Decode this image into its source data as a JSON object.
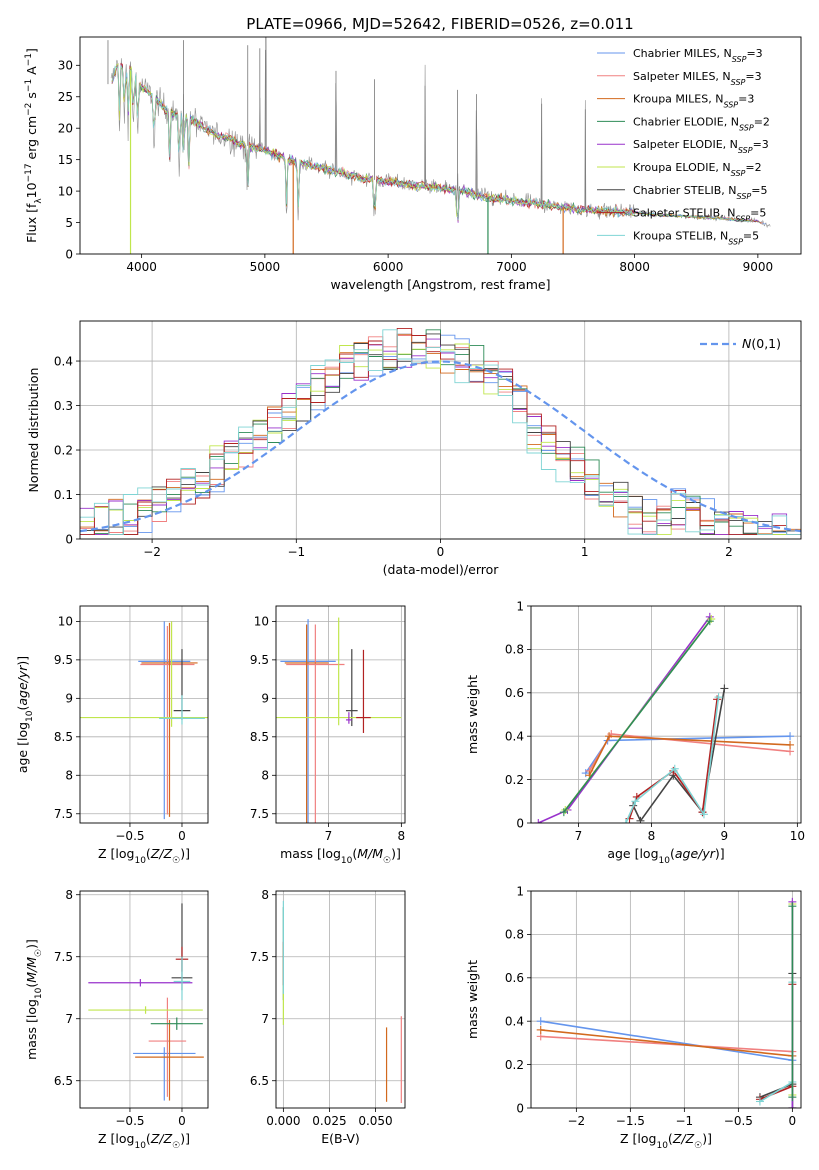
{
  "figure": {
    "title": "PLATE=0966, MJD=52642, FIBERID=0526, z=0.011"
  },
  "colors": [
    "#6495ED",
    "#F08080",
    "#D2691E",
    "#2E8B57",
    "#9932CC",
    "#C0E64D",
    "#444444",
    "#B22222",
    "#7FD4D4"
  ],
  "chart_data": [
    {
      "id": "spectrum",
      "type": "line",
      "xlabel": "wavelength [Angstrom, rest frame]",
      "ylabel": "Flux [f_λ 10^-17 erg cm^-2 s^-1 A^-1]",
      "xlim": [
        3500,
        9350
      ],
      "ylim": [
        0,
        34.5
      ],
      "xticks": [
        4000,
        5000,
        6000,
        7000,
        8000,
        9000
      ],
      "yticks": [
        0,
        5,
        10,
        15,
        20,
        25,
        30
      ],
      "grid": false,
      "legend_position": "top-right",
      "continuum": {
        "x": [
          3750,
          3800,
          3900,
          4000,
          4100,
          4200,
          4300,
          4400,
          4500,
          4600,
          4700,
          4800,
          4900,
          5000,
          5200,
          5400,
          5600,
          5800,
          6000,
          6200,
          6400,
          6600,
          6800,
          7000,
          7200,
          7400,
          7600,
          7800,
          8000,
          8200,
          8400,
          8600,
          8800,
          9000,
          9100
        ],
        "y": [
          27,
          30,
          29.5,
          26.5,
          25,
          23,
          22,
          21.5,
          20,
          19,
          18.5,
          17.5,
          17,
          16.5,
          15,
          14,
          13,
          12,
          11.5,
          11,
          10.5,
          10,
          9,
          8.5,
          8,
          7.5,
          7,
          6.8,
          6.6,
          6.2,
          6,
          5.8,
          5.5,
          5.2,
          4.5
        ]
      },
      "absorption_lines": [
        3820,
        3860,
        3890,
        3933,
        3968,
        4101,
        4227,
        4304,
        4340,
        4383,
        4861,
        5175,
        5270,
        5890,
        6563
      ],
      "emission_lines": [
        3727,
        4340,
        4861,
        4959,
        5007,
        5577,
        5890,
        6300,
        6563,
        6717,
        7246,
        7600
      ],
      "drop_lines": [
        3910,
        5230,
        6810,
        7420
      ],
      "series": [
        {
          "name": "Chabrier MILES, N_SSP=3",
          "prefix": "Chabrier MILES, N",
          "sub": "SSP",
          "suffix": "=3"
        },
        {
          "name": "Salpeter MILES, N_SSP=3",
          "prefix": "Salpeter MILES, N",
          "sub": "SSP",
          "suffix": "=3"
        },
        {
          "name": "Kroupa MILES, N_SSP=3",
          "prefix": "Kroupa MILES, N",
          "sub": "SSP",
          "suffix": "=3"
        },
        {
          "name": "Chabrier ELODIE, N_SSP=2",
          "prefix": "Chabrier ELODIE, N",
          "sub": "SSP",
          "suffix": "=2"
        },
        {
          "name": "Salpeter ELODIE, N_SSP=3",
          "prefix": "Salpeter ELODIE, N",
          "sub": "SSP",
          "suffix": "=3"
        },
        {
          "name": "Kroupa ELODIE, N_SSP=2",
          "prefix": "Kroupa ELODIE, N",
          "sub": "SSP",
          "suffix": "=2"
        },
        {
          "name": "Chabrier STELIB, N_SSP=5",
          "prefix": "Chabrier STELIB, N",
          "sub": "SSP",
          "suffix": "=5"
        },
        {
          "name": "Salpeter STELIB, N_SSP=5",
          "prefix": "Salpeter STELIB, N",
          "sub": "SSP",
          "suffix": "=5"
        },
        {
          "name": "Kroupa STELIB, N_SSP=5",
          "prefix": "Kroupa STELIB, N",
          "sub": "SSP",
          "suffix": "=5"
        }
      ]
    },
    {
      "id": "residuals",
      "type": "line",
      "xlabel": "(data-model)/error",
      "ylabel": "Normed distribution",
      "xlim": [
        -2.5,
        2.5
      ],
      "ylim": [
        0,
        0.49
      ],
      "xticks": [
        -2,
        -1,
        0,
        1,
        2
      ],
      "yticks": [
        0.0,
        0.1,
        0.2,
        0.3,
        0.4
      ],
      "grid": true,
      "legend_position": "top-right",
      "legend": "N(0,1)",
      "bin_width": 0.1,
      "gaussian": {
        "mean": 0,
        "sigma": 1
      }
    },
    {
      "id": "age-vs-Z",
      "type": "scatter",
      "xlabel": "Z [log10(Z/Z☉)]",
      "ylabel": "age  [log10(age/yr)]",
      "xlim": [
        -0.98,
        0.25
      ],
      "ylim": [
        7.38,
        10.2
      ],
      "xticks": [
        -0.5,
        0.0
      ],
      "yticks": [
        7.5,
        8.0,
        8.5,
        9.0,
        9.5,
        10.0
      ],
      "grid": true,
      "crosses": [
        {
          "series": 0,
          "x": -0.17,
          "y": 9.48,
          "xerr": 0.25,
          "yerr": [
            2.05,
            0.52
          ]
        },
        {
          "series": 1,
          "x": -0.14,
          "y": 9.44,
          "xerr": 0.26,
          "yerr": [
            1.95,
            0.5
          ]
        },
        {
          "series": 2,
          "x": -0.12,
          "y": 9.46,
          "xerr": 0.27,
          "yerr": [
            2.0,
            0.52
          ]
        },
        {
          "series": 6,
          "x": 0.0,
          "y": 8.84,
          "xerr": 0.08,
          "yerr": [
            0.12,
            0.8
          ]
        },
        {
          "series": 5,
          "x": -0.1,
          "y": 8.75,
          "xerr": 0.88,
          "yerr": [
            0.12,
            1.25
          ]
        },
        {
          "series": 8,
          "x": 0.0,
          "y": 8.74,
          "xerr": 0.22,
          "yerr": [
            0.08,
            0.3
          ]
        }
      ]
    },
    {
      "id": "age-vs-mass",
      "type": "scatter",
      "xlabel": "mass [log10(M/M☉)]",
      "ylabel": "",
      "xlim": [
        6.28,
        8.05
      ],
      "ylim": [
        7.38,
        10.2
      ],
      "xticks": [
        7,
        8
      ],
      "yticks": [
        7.5,
        8.0,
        8.5,
        9.0,
        9.5,
        10.0
      ],
      "grid": true,
      "crosses": [
        {
          "series": 0,
          "x": 6.72,
          "y": 9.48,
          "xerr": 0.38,
          "yerr": [
            2.2,
            0.55
          ]
        },
        {
          "series": 1,
          "x": 6.82,
          "y": 9.44,
          "xerr": 0.4,
          "yerr": [
            2.1,
            0.52
          ]
        },
        {
          "series": 2,
          "x": 6.7,
          "y": 9.46,
          "xerr": 0.3,
          "yerr": [
            2.2,
            0.5
          ]
        },
        {
          "series": 6,
          "x": 7.32,
          "y": 8.84,
          "xerr": 0.08,
          "yerr": [
            0.2,
            0.8
          ]
        },
        {
          "series": 5,
          "x": 7.14,
          "y": 8.75,
          "xerr": 0.86,
          "yerr": [
            0.1,
            1.3
          ]
        },
        {
          "series": 7,
          "x": 7.48,
          "y": 8.75,
          "xerr": 0.1,
          "yerr": [
            0.2,
            0.88
          ]
        },
        {
          "series": 4,
          "x": 7.28,
          "y": 8.72,
          "xerr": 0.04,
          "yerr": [
            0.05,
            0.1
          ]
        }
      ]
    },
    {
      "id": "mass-weight-vs-age",
      "type": "line",
      "xlabel": "age  [log10(age/yr)]",
      "ylabel": "mass weight",
      "xlim": [
        6.35,
        10.05
      ],
      "ylim": [
        0,
        1.0
      ],
      "xticks": [
        7,
        8,
        9,
        10
      ],
      "yticks": [
        0.0,
        0.2,
        0.4,
        0.6,
        0.8,
        1.0
      ],
      "grid": true,
      "series_points": [
        {
          "series": 0,
          "x": [
            7.1,
            7.4,
            9.9
          ],
          "y": [
            0.23,
            0.38,
            0.4
          ]
        },
        {
          "series": 1,
          "x": [
            7.15,
            7.45,
            9.9
          ],
          "y": [
            0.24,
            0.41,
            0.33
          ]
        },
        {
          "series": 2,
          "x": [
            7.15,
            7.42,
            9.9
          ],
          "y": [
            0.22,
            0.4,
            0.36
          ]
        },
        {
          "series": 4,
          "x": [
            6.45,
            6.85,
            8.8
          ],
          "y": [
            0.0,
            0.06,
            0.95
          ]
        },
        {
          "series": 5,
          "x": [
            6.82,
            8.82
          ],
          "y": [
            0.06,
            0.94
          ]
        },
        {
          "series": 3,
          "x": [
            6.8,
            8.8
          ],
          "y": [
            0.05,
            0.93
          ]
        },
        {
          "series": 6,
          "x": [
            7.75,
            7.85,
            8.3,
            8.7,
            9.0
          ],
          "y": [
            0.08,
            0.01,
            0.22,
            0.05,
            0.62
          ]
        },
        {
          "series": 7,
          "x": [
            7.7,
            7.8,
            8.3,
            8.7,
            8.9
          ],
          "y": [
            0.02,
            0.12,
            0.24,
            0.05,
            0.57
          ]
        },
        {
          "series": 8,
          "x": [
            7.65,
            7.78,
            8.32,
            8.72,
            8.92
          ],
          "y": [
            0.0,
            0.1,
            0.25,
            0.04,
            0.58
          ]
        }
      ]
    },
    {
      "id": "mass-vs-Z",
      "type": "scatter",
      "xlabel": "Z [log10(Z/Z☉)]",
      "ylabel": "mass [log10(M/M☉)]",
      "xlim": [
        -0.98,
        0.25
      ],
      "ylim": [
        6.28,
        8.03
      ],
      "xticks": [
        -0.5,
        0.0
      ],
      "yticks": [
        6.5,
        7.0,
        7.5,
        8.0
      ],
      "grid": true,
      "crosses": [
        {
          "series": 0,
          "x": -0.17,
          "y": 6.72,
          "xerr": 0.3,
          "yerr": [
            0.38,
            0.05
          ]
        },
        {
          "series": 1,
          "x": -0.14,
          "y": 6.82,
          "xerr": 0.18,
          "yerr": [
            0.45,
            0.35
          ]
        },
        {
          "series": 2,
          "x": -0.12,
          "y": 6.69,
          "xerr": 0.33,
          "yerr": [
            0.35,
            0.3
          ]
        },
        {
          "series": 3,
          "x": -0.05,
          "y": 6.96,
          "xerr": 0.25,
          "yerr": [
            0.05,
            0.05
          ]
        },
        {
          "series": 4,
          "x": -0.4,
          "y": 7.29,
          "xerr": 0.5,
          "yerr": [
            0.03,
            0.03
          ]
        },
        {
          "series": 5,
          "x": -0.35,
          "y": 7.07,
          "xerr": 0.55,
          "yerr": [
            0.03,
            0.03
          ]
        },
        {
          "series": 6,
          "x": 0.0,
          "y": 7.33,
          "xerr": 0.1,
          "yerr": [
            0.1,
            0.6
          ]
        },
        {
          "series": 7,
          "x": 0.0,
          "y": 7.48,
          "xerr": 0.06,
          "yerr": [
            0.1,
            0.1
          ]
        },
        {
          "series": 8,
          "x": 0.0,
          "y": 7.3,
          "xerr": 0.08,
          "yerr": [
            0.15,
            0.2
          ]
        }
      ]
    },
    {
      "id": "mass-vs-EBV",
      "type": "scatter",
      "xlabel": "E(B-V)",
      "ylabel": "",
      "xlim": [
        -0.004,
        0.066
      ],
      "ylim": [
        6.28,
        8.03
      ],
      "xticks": [
        0.0,
        0.025,
        0.05
      ],
      "tick_labels": [
        "0.000",
        "0.025",
        "0.050"
      ],
      "yticks": [
        6.5,
        7.0,
        7.5,
        8.0
      ],
      "grid": true,
      "crosses": [
        {
          "series": 1,
          "x": 0.064,
          "y": 6.72,
          "xerr": 0.0,
          "yerr": [
            0.4,
            0.3
          ]
        },
        {
          "series": 2,
          "x": 0.056,
          "y": 6.63,
          "xerr": 0.0,
          "yerr": [
            0.3,
            0.3
          ]
        },
        {
          "series": 3,
          "x": 0.0,
          "y": 7.45,
          "xerr": 0.0,
          "yerr": [
            0.3,
            0.45
          ]
        },
        {
          "series": 5,
          "x": 0.0,
          "y": 7.2,
          "xerr": 0.0,
          "yerr": [
            0.25,
            0.4
          ]
        },
        {
          "series": 7,
          "x": 0.0,
          "y": 7.52,
          "xerr": 0.0,
          "yerr": [
            0.25,
            0.1
          ]
        },
        {
          "series": 8,
          "x": 0.0,
          "y": 7.5,
          "xerr": 0.0,
          "yerr": [
            0.3,
            0.45
          ]
        }
      ]
    },
    {
      "id": "mass-weight-vs-Z",
      "type": "line",
      "xlabel": "Z [log10(Z/Z☉)]",
      "ylabel": "mass weight",
      "xlim": [
        -2.42,
        0.08
      ],
      "ylim": [
        0,
        1.0
      ],
      "xticks": [
        -2.0,
        -1.5,
        -1.0,
        -0.5,
        0.0
      ],
      "yticks": [
        0.0,
        0.2,
        0.4,
        0.6,
        0.8,
        1.0
      ],
      "grid": true,
      "series_points": [
        {
          "series": 0,
          "x": [
            -2.33,
            0.0
          ],
          "y": [
            0.4,
            0.22
          ]
        },
        {
          "series": 1,
          "x": [
            -2.33,
            0.0
          ],
          "y": [
            0.33,
            0.26
          ]
        },
        {
          "series": 2,
          "x": [
            -2.33,
            0.0
          ],
          "y": [
            0.36,
            0.24
          ]
        },
        {
          "series": 6,
          "x": [
            -0.3,
            0.0,
            0.0,
            0.0
          ],
          "y": [
            0.05,
            0.11,
            0.62,
            0.0
          ]
        },
        {
          "series": 7,
          "x": [
            -0.3,
            0.0,
            0.0,
            0.0
          ],
          "y": [
            0.04,
            0.1,
            0.57,
            0.0
          ]
        },
        {
          "series": 8,
          "x": [
            -0.3,
            0.0,
            0.0,
            0.0
          ],
          "y": [
            0.03,
            0.12,
            0.58,
            0.0
          ]
        },
        {
          "series": 5,
          "x": [
            0.0,
            0.0
          ],
          "y": [
            0.06,
            0.94
          ]
        },
        {
          "series": 4,
          "x": [
            0.0,
            0.0
          ],
          "y": [
            0.0,
            0.95
          ]
        },
        {
          "series": 3,
          "x": [
            0.0,
            0.0
          ],
          "y": [
            0.05,
            0.93
          ]
        }
      ]
    }
  ]
}
